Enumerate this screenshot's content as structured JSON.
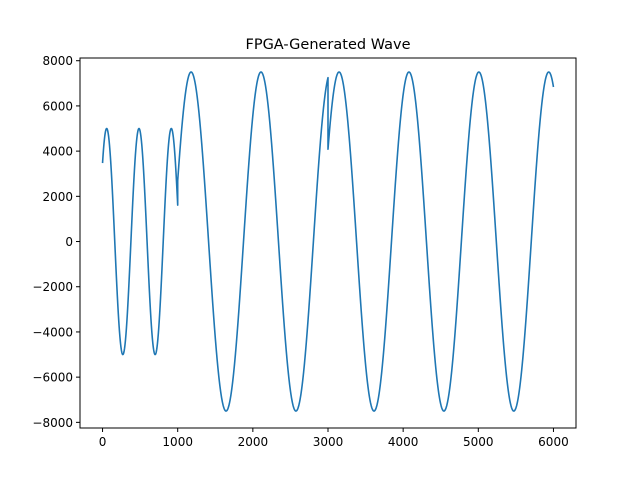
{
  "chart_data": {
    "type": "line",
    "title": "FPGA-Generated Wave",
    "xlabel": "",
    "ylabel": "",
    "xlim": [
      -300,
      6300
    ],
    "ylim": [
      -8250,
      8120
    ],
    "xticks": [
      0,
      1000,
      2000,
      3000,
      4000,
      5000,
      6000
    ],
    "xtick_labels": [
      "0",
      "1000",
      "2000",
      "3000",
      "4000",
      "5000",
      "6000"
    ],
    "yticks": [
      -8000,
      -6000,
      -4000,
      -2000,
      0,
      2000,
      4000,
      6000,
      8000
    ],
    "ytick_labels": [
      "−8000",
      "−6000",
      "−4000",
      "−2000",
      "0",
      "2000",
      "4000",
      "6000",
      "8000"
    ],
    "grid": false,
    "series": [
      {
        "color": "#1f77b4",
        "segments": [
          {
            "x_start": 0,
            "x_end": 1000,
            "amplitude": 5000,
            "period": 430,
            "phase_deg": 44
          },
          {
            "x_start": 1000,
            "x_end": 3000,
            "amplitude": 7500,
            "period": 930,
            "phase_deg": 21
          },
          {
            "x_start": 3000,
            "x_end": 6000,
            "amplitude": 7500,
            "period": 930,
            "phase_deg": 33
          }
        ]
      }
    ]
  }
}
